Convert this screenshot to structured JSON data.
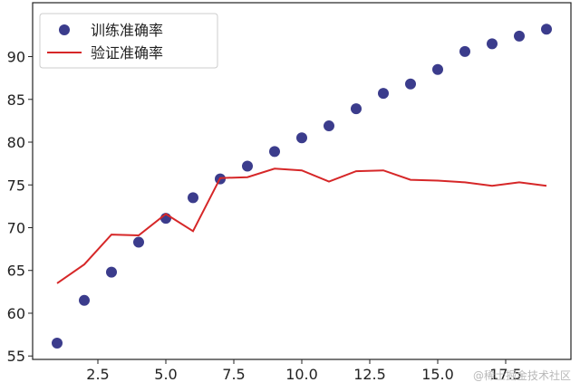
{
  "chart_data": {
    "type": "scatter",
    "title": "",
    "xlabel": "",
    "ylabel": "",
    "xlim": [
      0.1,
      19.9
    ],
    "ylim": [
      54.6,
      96.3
    ],
    "x_ticks": [
      2.5,
      5.0,
      7.5,
      10.0,
      12.5,
      15.0,
      17.5
    ],
    "x_tick_labels": [
      "2.5",
      "5.0",
      "7.5",
      "10.0",
      "12.5",
      "15.0",
      "17.5"
    ],
    "y_ticks": [
      55,
      60,
      65,
      70,
      75,
      80,
      85,
      90
    ],
    "y_tick_labels": [
      "55",
      "60",
      "65",
      "70",
      "75",
      "80",
      "85",
      "90"
    ],
    "grid": false,
    "legend_position": "top-left",
    "series": [
      {
        "name": "训练准确率",
        "kind": "scatter",
        "color": "#3b3c8c",
        "x": [
          1,
          2,
          3,
          4,
          5,
          6,
          7,
          8,
          9,
          10,
          11,
          12,
          13,
          14,
          15,
          16,
          17,
          18,
          19
        ],
        "values": [
          56.5,
          61.5,
          64.8,
          68.3,
          71.1,
          73.5,
          75.7,
          77.2,
          78.9,
          80.5,
          81.9,
          83.9,
          85.7,
          86.8,
          88.5,
          90.6,
          91.5,
          92.4,
          93.2
        ]
      },
      {
        "name": "验证准确率",
        "kind": "line",
        "color": "#d62728",
        "x": [
          1,
          2,
          3,
          4,
          5,
          6,
          7,
          8,
          9,
          10,
          11,
          12,
          13,
          14,
          15,
          16,
          17,
          18,
          19
        ],
        "values": [
          63.5,
          65.7,
          69.2,
          69.1,
          71.6,
          69.6,
          75.8,
          75.9,
          76.9,
          76.7,
          75.4,
          76.6,
          76.7,
          75.6,
          75.5,
          75.3,
          74.9,
          75.3,
          74.9
        ]
      }
    ]
  },
  "watermark": "@稀土掘金技术社区"
}
